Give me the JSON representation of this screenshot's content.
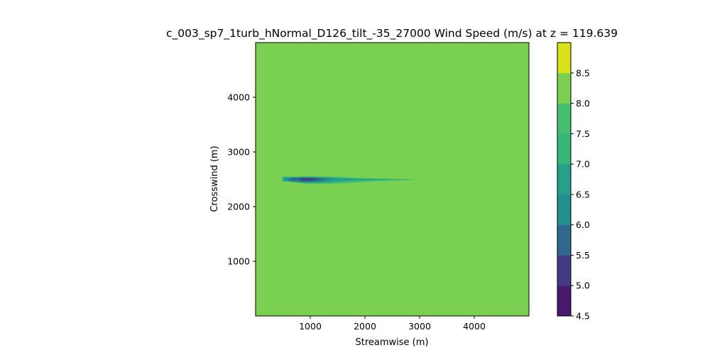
{
  "chart_data": {
    "type": "heatmap",
    "title": "c_003_sp7_1turb_hNormal_D126_tilt_-35_27000 Wind Speed (m/s) at z = 119.639",
    "xlabel": "Streamwise (m)",
    "ylabel": "Crosswind (m)",
    "xlim": [
      0,
      5000
    ],
    "ylim": [
      0,
      5000
    ],
    "x_ticks": [
      {
        "value": 1000,
        "label": "1000"
      },
      {
        "value": 2000,
        "label": "2000"
      },
      {
        "value": 3000,
        "label": "3000"
      },
      {
        "value": 4000,
        "label": "4000"
      }
    ],
    "y_ticks": [
      {
        "value": 1000,
        "label": "1000"
      },
      {
        "value": 2000,
        "label": "2000"
      },
      {
        "value": 3000,
        "label": "3000"
      },
      {
        "value": 4000,
        "label": "4000"
      }
    ],
    "background_level": [
      8.0,
      8.5
    ],
    "colorbar": {
      "levels": [
        4.5,
        5.0,
        5.5,
        6.0,
        6.5,
        7.0,
        7.5,
        8.0,
        8.5
      ],
      "tick_labels": [
        "4.5",
        "5.0",
        "5.5",
        "6.0",
        "6.5",
        "7.0",
        "7.5",
        "8.0",
        "8.5"
      ],
      "colors": [
        "#481a6c",
        "#443a83",
        "#31688e",
        "#21908d",
        "#25a18a",
        "#35b779",
        "#44bf70",
        "#7ad151",
        "#d8e219"
      ]
    },
    "regions": [
      {
        "level": [
          7.5,
          8.0
        ],
        "color": "#7ad151",
        "points": [
          [
            470,
            2550
          ],
          [
            1200,
            2560
          ],
          [
            2200,
            2555
          ],
          [
            3300,
            2545
          ],
          [
            4200,
            2540
          ],
          [
            5000,
            2540
          ],
          [
            5000,
            2370
          ],
          [
            4200,
            2380
          ],
          [
            3300,
            2385
          ],
          [
            2200,
            2390
          ],
          [
            1200,
            2405
          ],
          [
            470,
            2460
          ]
        ]
      },
      {
        "level": [
          7.0,
          7.5
        ],
        "color": "#44bf70",
        "points": [
          [
            480,
            2545
          ],
          [
            1000,
            2555
          ],
          [
            1500,
            2545
          ],
          [
            2100,
            2520
          ],
          [
            2700,
            2505
          ],
          [
            3000,
            2495
          ],
          [
            2700,
            2480
          ],
          [
            2100,
            2460
          ],
          [
            1500,
            2420
          ],
          [
            1000,
            2415
          ],
          [
            480,
            2465
          ]
        ]
      },
      {
        "level": [
          6.5,
          7.0
        ],
        "color": "#25a18a",
        "points": [
          [
            500,
            2535
          ],
          [
            900,
            2545
          ],
          [
            1350,
            2535
          ],
          [
            1700,
            2515
          ],
          [
            2000,
            2505
          ],
          [
            2800,
            2495
          ],
          [
            2000,
            2480
          ],
          [
            1700,
            2470
          ],
          [
            1350,
            2440
          ],
          [
            900,
            2430
          ],
          [
            500,
            2470
          ]
        ]
      },
      {
        "level": [
          6.0,
          6.5
        ],
        "color": "#21908d",
        "points": [
          [
            540,
            2525
          ],
          [
            850,
            2540
          ],
          [
            1200,
            2530
          ],
          [
            1450,
            2510
          ],
          [
            1200,
            2450
          ],
          [
            850,
            2445
          ],
          [
            540,
            2480
          ]
        ]
      },
      {
        "level": [
          5.5,
          6.0
        ],
        "color": "#31688e",
        "points": [
          [
            620,
            2520
          ],
          [
            850,
            2532
          ],
          [
            1100,
            2525
          ],
          [
            1300,
            2505
          ],
          [
            1100,
            2465
          ],
          [
            850,
            2460
          ],
          [
            620,
            2485
          ]
        ]
      },
      {
        "level": [
          5.0,
          5.5
        ],
        "color": "#443a83",
        "points": [
          [
            820,
            2512
          ],
          [
            1000,
            2520
          ],
          [
            1150,
            2505
          ],
          [
            1000,
            2475
          ],
          [
            820,
            2480
          ]
        ]
      },
      {
        "level": [
          7.5,
          8.0
        ],
        "color": "#7ad151",
        "points": [
          [
            4300,
            1550
          ],
          [
            4700,
            1580
          ],
          [
            4900,
            1610
          ],
          [
            5000,
            1620
          ],
          [
            5000,
            1500
          ],
          [
            4850,
            1510
          ],
          [
            4600,
            1520
          ],
          [
            4300,
            1535
          ]
        ]
      }
    ]
  }
}
